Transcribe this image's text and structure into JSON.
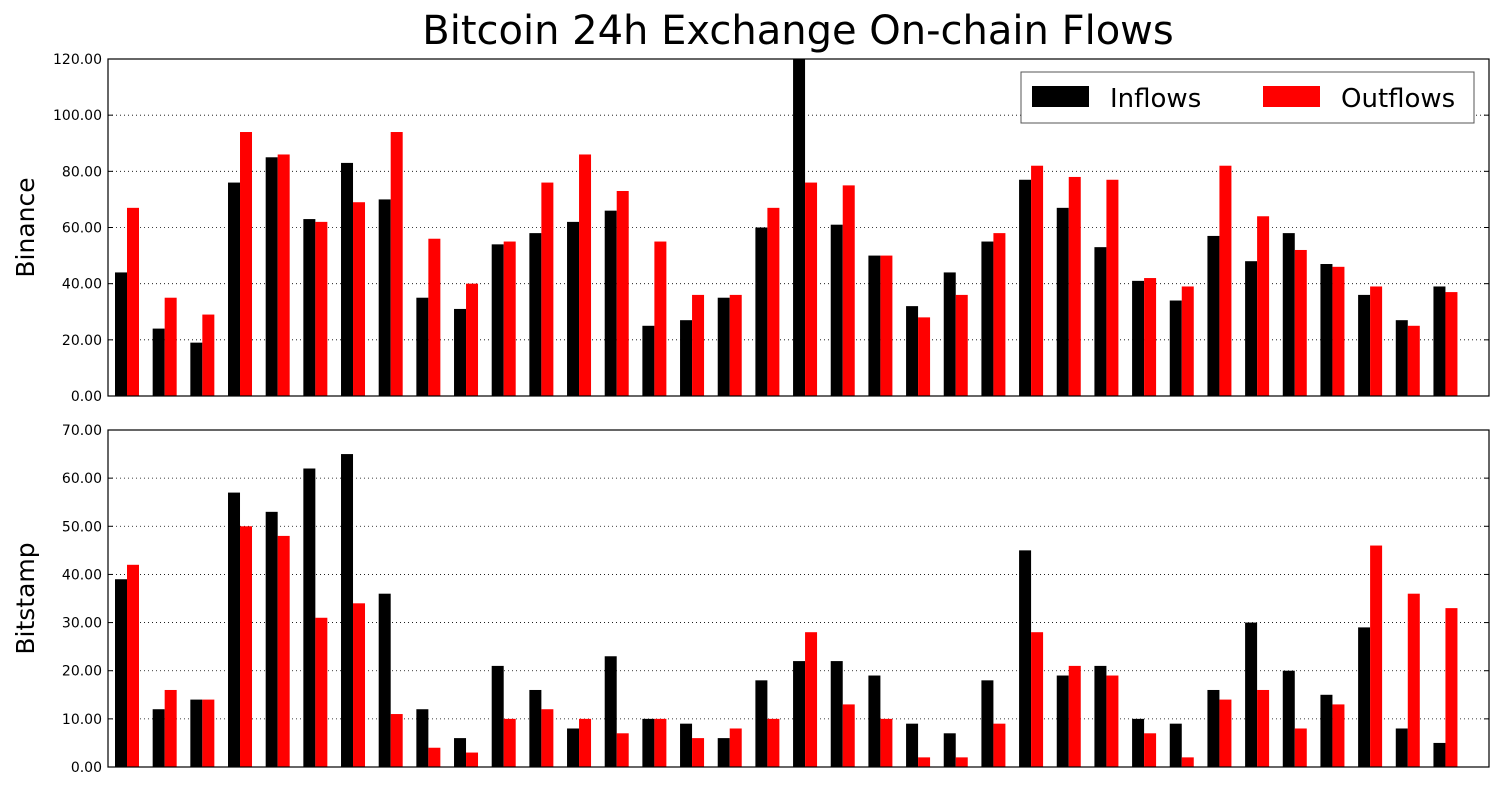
{
  "chart_data": {
    "type": "bar",
    "title": "Bitcoin 24h Exchange On-chain Flows",
    "legend": {
      "placement": "top-right",
      "columns": 2
    },
    "grid": true,
    "colors": {
      "Inflows": "#000000",
      "Outflows": "#ff0000"
    },
    "panels": [
      {
        "ylabel": "Binance",
        "ylim": [
          0,
          120
        ],
        "yticks": [
          "0.00",
          "20.00",
          "40.00",
          "60.00",
          "80.00",
          "100.00",
          "120.00"
        ],
        "show_legend": true,
        "series": [
          {
            "name": "Inflows",
            "values": [
              44,
              24,
              19,
              76,
              85,
              63,
              83,
              70,
              35,
              31,
              54,
              58,
              62,
              66,
              25,
              27,
              35,
              60,
              120,
              61,
              50,
              32,
              44,
              55,
              77,
              67,
              53,
              41,
              34,
              57,
              48,
              58,
              47,
              36,
              27,
              39
            ]
          },
          {
            "name": "Outflows",
            "values": [
              67,
              35,
              29,
              94,
              86,
              62,
              69,
              94,
              56,
              40,
              55,
              76,
              86,
              73,
              55,
              36,
              36,
              67,
              76,
              75,
              50,
              28,
              36,
              58,
              82,
              78,
              77,
              42,
              39,
              82,
              64,
              52,
              46,
              39,
              25,
              37
            ]
          }
        ]
      },
      {
        "ylabel": "Bitstamp",
        "ylim": [
          0,
          70
        ],
        "yticks": [
          "0.00",
          "10.00",
          "20.00",
          "30.00",
          "40.00",
          "50.00",
          "60.00",
          "70.00"
        ],
        "show_legend": false,
        "series": [
          {
            "name": "Inflows",
            "values": [
              39,
              12,
              14,
              57,
              53,
              62,
              65,
              36,
              12,
              6,
              21,
              16,
              8,
              23,
              10,
              9,
              6,
              18,
              22,
              22,
              19,
              9,
              7,
              18,
              45,
              19,
              21,
              10,
              9,
              16,
              30,
              20,
              15,
              29,
              8,
              5
            ]
          },
          {
            "name": "Outflows",
            "values": [
              42,
              16,
              14,
              50,
              48,
              31,
              34,
              11,
              4,
              3,
              10,
              12,
              10,
              7,
              10,
              6,
              8,
              10,
              28,
              13,
              10,
              2,
              2,
              9,
              28,
              21,
              19,
              7,
              2,
              14,
              16,
              8,
              13,
              46,
              36,
              33
            ]
          }
        ]
      }
    ]
  }
}
